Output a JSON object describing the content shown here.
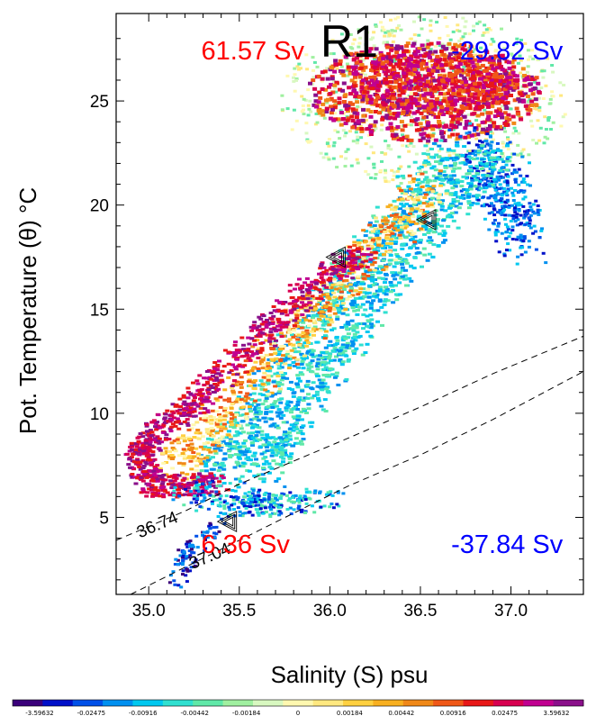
{
  "chart_data": {
    "type": "heatmap",
    "title": "R1",
    "xlabel": "Salinity (S) psu",
    "ylabel": "Pot. Temperature (θ) °C",
    "xlim": [
      34.82,
      37.4
    ],
    "ylim": [
      1.3,
      29.2
    ],
    "x_ticks": [
      35.0,
      35.5,
      36.0,
      36.5,
      37.0
    ],
    "x_tick_labels": [
      "35.0",
      "35.5",
      "36.0",
      "36.5",
      "37.0"
    ],
    "y_ticks": [
      5,
      10,
      15,
      20,
      25
    ],
    "y_tick_labels": [
      "5",
      "10",
      "15",
      "20",
      "25"
    ],
    "annotations": [
      {
        "text": "61.57 Sv",
        "color": "#ff0000",
        "x": 35.29,
        "y": 27.0
      },
      {
        "text": "-29.82 Sv",
        "color": "#0000ff",
        "x": 36.67,
        "y": 27.0
      },
      {
        "text": "6.36 Sv",
        "color": "#ff0000",
        "x": 35.29,
        "y": 3.3
      },
      {
        "text": "-37.84 Sv",
        "color": "#0000ff",
        "x": 36.67,
        "y": 3.3
      }
    ],
    "contours": [
      {
        "label": "36.74",
        "points": [
          [
            34.82,
            3.9
          ],
          [
            35.2,
            5.3
          ],
          [
            35.5,
            6.6
          ],
          [
            35.8,
            7.7
          ],
          [
            36.1,
            8.8
          ],
          [
            36.5,
            10.3
          ],
          [
            36.9,
            11.9
          ],
          [
            37.4,
            13.7
          ]
        ]
      },
      {
        "label": "37.04",
        "points": [
          [
            34.9,
            1.3
          ],
          [
            35.2,
            2.6
          ],
          [
            35.5,
            3.9
          ],
          [
            35.8,
            5.2
          ],
          [
            36.1,
            6.5
          ],
          [
            36.5,
            8.0
          ],
          [
            36.9,
            9.7
          ],
          [
            37.4,
            12.0
          ]
        ]
      }
    ],
    "markers": [
      {
        "x": 36.05,
        "y": 17.5
      },
      {
        "x": 36.55,
        "y": 19.3
      },
      {
        "x": 35.45,
        "y": 4.8
      }
    ],
    "colorbar": {
      "labels": [
        "-3.59632",
        "-0.02475",
        "-0.00916",
        "-0.00442",
        "-0.00184",
        "0",
        "0.00184",
        "0.00442",
        "0.00916",
        "0.02475",
        "3.59632"
      ],
      "colors": [
        "#3a007a",
        "#0010c8",
        "#0050e8",
        "#0090f0",
        "#00c8f0",
        "#30e0d0",
        "#60e8a8",
        "#a0f0a0",
        "#d8f8c0",
        "#fff8b0",
        "#ffe880",
        "#ffd040",
        "#f8b020",
        "#f08818",
        "#f05818",
        "#e81818",
        "#d80050",
        "#c00090",
        "#8a108a"
      ]
    },
    "grid": false,
    "legend": "none"
  }
}
